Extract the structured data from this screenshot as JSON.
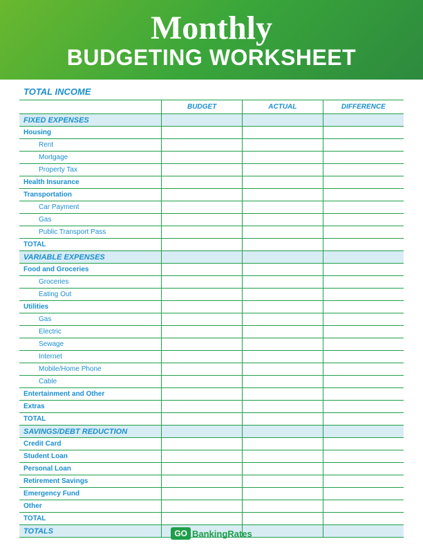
{
  "header": {
    "title_script": "Monthly",
    "title_sub": "BUDGETING WORKSHEET"
  },
  "income_label": "TOTAL INCOME",
  "columns": {
    "label": "",
    "budget": "BUDGET",
    "actual": "ACTUAL",
    "difference": "DIFFERENCE"
  },
  "sections": [
    {
      "title": "FIXED EXPENSES",
      "groups": [
        {
          "label": "Housing",
          "type": "cat"
        },
        {
          "label": "Rent",
          "type": "sub"
        },
        {
          "label": "Mortgage",
          "type": "sub"
        },
        {
          "label": "Property Tax",
          "type": "sub"
        },
        {
          "label": "Health Insurance",
          "type": "cat"
        },
        {
          "label": "Transportation",
          "type": "cat"
        },
        {
          "label": "Car Payment",
          "type": "sub"
        },
        {
          "label": "Gas",
          "type": "sub"
        },
        {
          "label": "Public Transport Pass",
          "type": "sub"
        },
        {
          "label": "TOTAL",
          "type": "total"
        }
      ]
    },
    {
      "title": "VARIABLE EXPENSES",
      "groups": [
        {
          "label": "Food and Groceries",
          "type": "cat"
        },
        {
          "label": "Groceries",
          "type": "sub"
        },
        {
          "label": "Eating Out",
          "type": "sub"
        },
        {
          "label": "Utilities",
          "type": "cat"
        },
        {
          "label": "Gas",
          "type": "sub"
        },
        {
          "label": "Electric",
          "type": "sub"
        },
        {
          "label": "Sewage",
          "type": "sub"
        },
        {
          "label": "Internet",
          "type": "sub"
        },
        {
          "label": "Mobile/Home Phone",
          "type": "sub"
        },
        {
          "label": "Cable",
          "type": "sub"
        },
        {
          "label": "Entertainment and Other",
          "type": "cat"
        },
        {
          "label": "Extras",
          "type": "cat"
        },
        {
          "label": "TOTAL",
          "type": "total"
        }
      ]
    },
    {
      "title": "SAVINGS/DEBT REDUCTION",
      "groups": [
        {
          "label": "Credit Card",
          "type": "cat"
        },
        {
          "label": "Student Loan",
          "type": "cat"
        },
        {
          "label": "Personal Loan",
          "type": "cat"
        },
        {
          "label": "Retirement Savings",
          "type": "cat"
        },
        {
          "label": "Emergency Fund",
          "type": "cat"
        },
        {
          "label": "Other",
          "type": "cat"
        },
        {
          "label": "TOTAL",
          "type": "total"
        }
      ]
    },
    {
      "title": "TOTALS",
      "groups": []
    }
  ],
  "brand": {
    "go": "GO",
    "rest": "BankingRates"
  },
  "colors": {
    "green_border": "#1f9e4a",
    "blue_text": "#1a8fcf",
    "section_bg": "#d8ecf4",
    "header_grad_start": "#6ab82f",
    "header_grad_end": "#2d8a3e"
  }
}
